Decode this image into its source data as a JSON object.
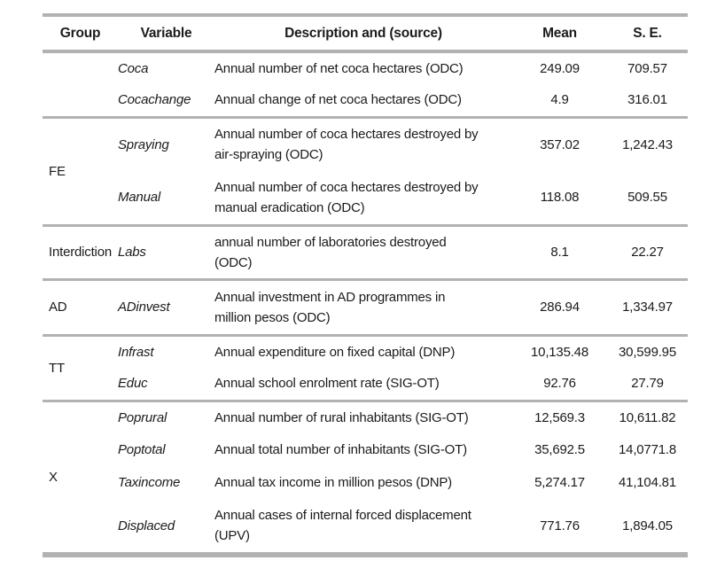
{
  "table": {
    "headers": {
      "group": "Group",
      "variable": "Variable",
      "description": "Description and (source)",
      "mean": "Mean",
      "se": "S. E."
    },
    "sections": [
      {
        "group": "",
        "rows": [
          {
            "variable": "Coca",
            "description": "Annual number of net coca hectares (ODC)",
            "mean": "249.09",
            "se": "709.57"
          },
          {
            "variable": "Cocachange",
            "description": "Annual change of net coca hectares (ODC)",
            "mean": "4.9",
            "se": "316.01"
          }
        ]
      },
      {
        "group": "FE",
        "rows": [
          {
            "variable": "Spraying",
            "description": "Annual number of coca hectares destroyed by\nair-spraying (ODC)",
            "mean": "357.02",
            "se": "1,242.43"
          },
          {
            "variable": "Manual",
            "description": "Annual number of coca hectares destroyed by\nmanual eradication (ODC)",
            "mean": "118.08",
            "se": "509.55"
          }
        ]
      },
      {
        "group": "Interdiction",
        "rows": [
          {
            "variable": "Labs",
            "description": "annual number of laboratories destroyed\n(ODC)",
            "mean": "8.1",
            "se": "22.27"
          }
        ]
      },
      {
        "group": "AD",
        "rows": [
          {
            "variable": "ADinvest",
            "description": "Annual investment in AD programmes in\nmillion pesos (ODC)",
            "mean": "286.94",
            "se": "1,334.97"
          }
        ]
      },
      {
        "group": "TT",
        "rows": [
          {
            "variable": "Infrast",
            "description": "Annual expenditure on fixed capital (DNP)",
            "mean": "10,135.48",
            "se": "30,599.95"
          },
          {
            "variable": "Educ",
            "description": "Annual school enrolment rate (SIG-OT)",
            "mean": "92.76",
            "se": "27.79"
          }
        ]
      },
      {
        "group": "X",
        "rows": [
          {
            "variable": "Poprural",
            "description": "Annual number of rural inhabitants (SIG-OT)",
            "mean": "12,569.3",
            "se": "10,611.82"
          },
          {
            "variable": "Poptotal",
            "description": "Annual total number of inhabitants (SIG-OT)",
            "mean": "35,692.5",
            "se": "14,0771.8"
          },
          {
            "variable": "Taxincome",
            "description": "Annual tax income in million pesos (DNP)",
            "mean": "5,274.17",
            "se": "41,104.81"
          },
          {
            "variable": "Displaced",
            "description": "Annual cases of internal forced displacement\n(UPV)",
            "mean": "771.76",
            "se": "1,894.05"
          }
        ]
      }
    ],
    "colors": {
      "rule_gray": "#b2b2b2",
      "text": "#1b1b1b",
      "background": "#ffffff"
    }
  }
}
